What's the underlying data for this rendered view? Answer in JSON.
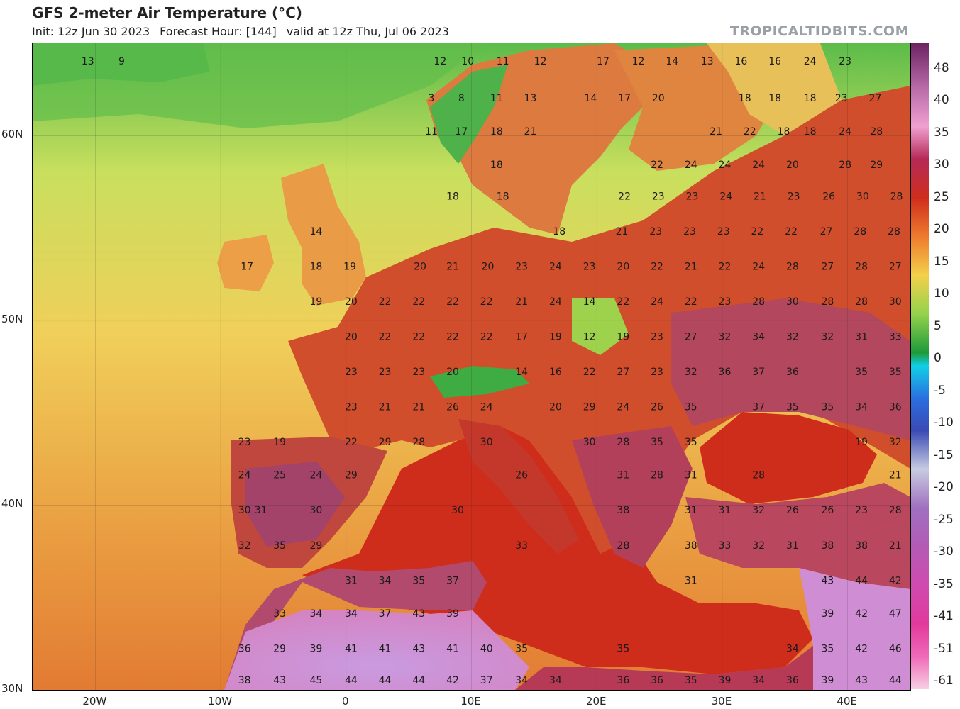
{
  "header": {
    "title": "GFS 2-meter Air Temperature (°C)",
    "init": "Init: 12z Jun 30 2023",
    "forecast_hour": "Forecast Hour: [144]",
    "valid": "valid at 12z Thu, Jul 06 2023",
    "source": "TROPICALTIDBITS.COM"
  },
  "axes": {
    "lat_labels": [
      "60N",
      "50N",
      "40N",
      "30N"
    ],
    "lon_labels": [
      "20W",
      "10W",
      "0",
      "10E",
      "20E",
      "30E",
      "40E"
    ]
  },
  "colorbar": {
    "labels": [
      "48",
      "40",
      "35",
      "30",
      "25",
      "20",
      "15",
      "10",
      "5",
      "0",
      "-5",
      "-10",
      "-15",
      "-20",
      "-25",
      "-30",
      "-35",
      "-41",
      "-51",
      "-61"
    ],
    "colors": [
      "#7a1f6a",
      "#c95bb0",
      "#e48ac9",
      "#b8404f",
      "#cc2a1f",
      "#e8642a",
      "#f3c646",
      "#c7e25a",
      "#2fa83a",
      "#11cfe6",
      "#2a6fe0",
      "#3a4ab5",
      "#7f8fb6",
      "#a070c0",
      "#b35ab5",
      "#d04ab0",
      "#e23a9c",
      "#f06ab8",
      "#f7a5cc",
      "#f7d0e3"
    ],
    "map_colors": {
      "sea_cool": "#eec060",
      "sea_warm": "#e58a35",
      "mediterranean": "#cf2d1c",
      "land_hot": "#c7342a",
      "land_very_hot": "#a33d63",
      "desert": "#c79bd8",
      "north_cold": "#46b34a",
      "scandinavia": "#e07c3e"
    }
  },
  "temperature_labels": [
    {
      "v": "13",
      "lon": -20.6,
      "lat": 64.0
    },
    {
      "v": "9",
      "lon": -17.9,
      "lat": 64.0
    },
    {
      "v": "12",
      "lon": 7.5,
      "lat": 64.0
    },
    {
      "v": "10",
      "lon": 9.7,
      "lat": 64.0
    },
    {
      "v": "11",
      "lon": 12.5,
      "lat": 64.0
    },
    {
      "v": "12",
      "lon": 15.5,
      "lat": 64.0
    },
    {
      "v": "17",
      "lon": 20.5,
      "lat": 64.0
    },
    {
      "v": "12",
      "lon": 23.3,
      "lat": 64.0
    },
    {
      "v": "14",
      "lon": 26.0,
      "lat": 64.0
    },
    {
      "v": "13",
      "lon": 28.8,
      "lat": 64.0
    },
    {
      "v": "16",
      "lon": 31.5,
      "lat": 64.0
    },
    {
      "v": "16",
      "lon": 34.2,
      "lat": 64.0
    },
    {
      "v": "24",
      "lon": 37.0,
      "lat": 64.0
    },
    {
      "v": "23",
      "lon": 39.8,
      "lat": 64.0
    },
    {
      "v": "3",
      "lon": 6.8,
      "lat": 62.0
    },
    {
      "v": "8",
      "lon": 9.2,
      "lat": 62.0
    },
    {
      "v": "11",
      "lon": 12.0,
      "lat": 62.0
    },
    {
      "v": "13",
      "lon": 14.7,
      "lat": 62.0
    },
    {
      "v": "14",
      "lon": 19.5,
      "lat": 62.0
    },
    {
      "v": "17",
      "lon": 22.2,
      "lat": 62.0
    },
    {
      "v": "20",
      "lon": 24.9,
      "lat": 62.0
    },
    {
      "v": "18",
      "lon": 31.8,
      "lat": 62.0
    },
    {
      "v": "18",
      "lon": 34.2,
      "lat": 62.0
    },
    {
      "v": "18",
      "lon": 37.0,
      "lat": 62.0
    },
    {
      "v": "23",
      "lon": 39.5,
      "lat": 62.0
    },
    {
      "v": "27",
      "lon": 42.2,
      "lat": 62.0
    },
    {
      "v": "11",
      "lon": 6.8,
      "lat": 60.2
    },
    {
      "v": "17",
      "lon": 9.2,
      "lat": 60.2
    },
    {
      "v": "18",
      "lon": 12.0,
      "lat": 60.2
    },
    {
      "v": "21",
      "lon": 14.7,
      "lat": 60.2
    },
    {
      "v": "21",
      "lon": 29.5,
      "lat": 60.2
    },
    {
      "v": "22",
      "lon": 32.2,
      "lat": 60.2
    },
    {
      "v": "18",
      "lon": 34.9,
      "lat": 60.2
    },
    {
      "v": "18",
      "lon": 37.0,
      "lat": 60.2
    },
    {
      "v": "24",
      "lon": 39.8,
      "lat": 60.2
    },
    {
      "v": "28",
      "lon": 42.3,
      "lat": 60.2
    },
    {
      "v": "18",
      "lon": 12.0,
      "lat": 58.4
    },
    {
      "v": "22",
      "lon": 24.8,
      "lat": 58.4
    },
    {
      "v": "24",
      "lon": 27.5,
      "lat": 58.4
    },
    {
      "v": "24",
      "lon": 30.2,
      "lat": 58.4
    },
    {
      "v": "24",
      "lon": 32.9,
      "lat": 58.4
    },
    {
      "v": "20",
      "lon": 35.6,
      "lat": 58.4
    },
    {
      "v": "28",
      "lon": 39.8,
      "lat": 58.4
    },
    {
      "v": "29",
      "lon": 42.3,
      "lat": 58.4
    },
    {
      "v": "18",
      "lon": 8.5,
      "lat": 56.7
    },
    {
      "v": "18",
      "lon": 12.5,
      "lat": 56.7
    },
    {
      "v": "22",
      "lon": 22.2,
      "lat": 56.7
    },
    {
      "v": "23",
      "lon": 24.9,
      "lat": 56.7
    },
    {
      "v": "23",
      "lon": 27.6,
      "lat": 56.7
    },
    {
      "v": "24",
      "lon": 30.3,
      "lat": 56.7
    },
    {
      "v": "21",
      "lon": 33.0,
      "lat": 56.7
    },
    {
      "v": "23",
      "lon": 35.7,
      "lat": 56.7
    },
    {
      "v": "26",
      "lon": 38.5,
      "lat": 56.7
    },
    {
      "v": "30",
      "lon": 41.2,
      "lat": 56.7
    },
    {
      "v": "28",
      "lon": 43.9,
      "lat": 56.7
    },
    {
      "v": "14",
      "lon": -2.4,
      "lat": 54.8
    },
    {
      "v": "18",
      "lon": 17.0,
      "lat": 54.8
    },
    {
      "v": "21",
      "lon": 22.0,
      "lat": 54.8
    },
    {
      "v": "23",
      "lon": 24.7,
      "lat": 54.8
    },
    {
      "v": "23",
      "lon": 27.4,
      "lat": 54.8
    },
    {
      "v": "23",
      "lon": 30.1,
      "lat": 54.8
    },
    {
      "v": "22",
      "lon": 32.8,
      "lat": 54.8
    },
    {
      "v": "22",
      "lon": 35.5,
      "lat": 54.8
    },
    {
      "v": "27",
      "lon": 38.3,
      "lat": 54.8
    },
    {
      "v": "28",
      "lon": 41.0,
      "lat": 54.8
    },
    {
      "v": "28",
      "lon": 43.7,
      "lat": 54.8
    },
    {
      "v": "17",
      "lon": -7.9,
      "lat": 52.9
    },
    {
      "v": "18",
      "lon": -2.4,
      "lat": 52.9
    },
    {
      "v": "19",
      "lon": 0.3,
      "lat": 52.9
    },
    {
      "v": "20",
      "lon": 5.9,
      "lat": 52.9
    },
    {
      "v": "21",
      "lon": 8.5,
      "lat": 52.9
    },
    {
      "v": "20",
      "lon": 11.3,
      "lat": 52.9
    },
    {
      "v": "23",
      "lon": 14.0,
      "lat": 52.9
    },
    {
      "v": "24",
      "lon": 16.7,
      "lat": 52.9
    },
    {
      "v": "23",
      "lon": 19.4,
      "lat": 52.9
    },
    {
      "v": "20",
      "lon": 22.1,
      "lat": 52.9
    },
    {
      "v": "22",
      "lon": 24.8,
      "lat": 52.9
    },
    {
      "v": "21",
      "lon": 27.5,
      "lat": 52.9
    },
    {
      "v": "22",
      "lon": 30.2,
      "lat": 52.9
    },
    {
      "v": "24",
      "lon": 32.9,
      "lat": 52.9
    },
    {
      "v": "28",
      "lon": 35.6,
      "lat": 52.9
    },
    {
      "v": "27",
      "lon": 38.4,
      "lat": 52.9
    },
    {
      "v": "28",
      "lon": 41.1,
      "lat": 52.9
    },
    {
      "v": "27",
      "lon": 43.8,
      "lat": 52.9
    },
    {
      "v": "19",
      "lon": -2.4,
      "lat": 51.0
    },
    {
      "v": "20",
      "lon": 0.4,
      "lat": 51.0
    },
    {
      "v": "22",
      "lon": 3.1,
      "lat": 51.0
    },
    {
      "v": "22",
      "lon": 5.8,
      "lat": 51.0
    },
    {
      "v": "22",
      "lon": 8.5,
      "lat": 51.0
    },
    {
      "v": "22",
      "lon": 11.2,
      "lat": 51.0
    },
    {
      "v": "21",
      "lon": 14.0,
      "lat": 51.0
    },
    {
      "v": "24",
      "lon": 16.7,
      "lat": 51.0
    },
    {
      "v": "14",
      "lon": 19.4,
      "lat": 51.0
    },
    {
      "v": "22",
      "lon": 22.1,
      "lat": 51.0
    },
    {
      "v": "24",
      "lon": 24.8,
      "lat": 51.0
    },
    {
      "v": "22",
      "lon": 27.5,
      "lat": 51.0
    },
    {
      "v": "23",
      "lon": 30.2,
      "lat": 51.0
    },
    {
      "v": "28",
      "lon": 32.9,
      "lat": 51.0
    },
    {
      "v": "30",
      "lon": 35.6,
      "lat": 51.0
    },
    {
      "v": "28",
      "lon": 38.4,
      "lat": 51.0
    },
    {
      "v": "28",
      "lon": 41.1,
      "lat": 51.0
    },
    {
      "v": "30",
      "lon": 43.8,
      "lat": 51.0
    },
    {
      "v": "20",
      "lon": 0.4,
      "lat": 49.1
    },
    {
      "v": "22",
      "lon": 3.1,
      "lat": 49.1
    },
    {
      "v": "22",
      "lon": 5.8,
      "lat": 49.1
    },
    {
      "v": "22",
      "lon": 8.5,
      "lat": 49.1
    },
    {
      "v": "22",
      "lon": 11.2,
      "lat": 49.1
    },
    {
      "v": "17",
      "lon": 14.0,
      "lat": 49.1
    },
    {
      "v": "19",
      "lon": 16.7,
      "lat": 49.1
    },
    {
      "v": "12",
      "lon": 19.4,
      "lat": 49.1
    },
    {
      "v": "19",
      "lon": 22.1,
      "lat": 49.1
    },
    {
      "v": "23",
      "lon": 24.8,
      "lat": 49.1
    },
    {
      "v": "27",
      "lon": 27.5,
      "lat": 49.1
    },
    {
      "v": "32",
      "lon": 30.2,
      "lat": 49.1
    },
    {
      "v": "34",
      "lon": 32.9,
      "lat": 49.1
    },
    {
      "v": "32",
      "lon": 35.6,
      "lat": 49.1
    },
    {
      "v": "32",
      "lon": 38.4,
      "lat": 49.1
    },
    {
      "v": "31",
      "lon": 41.1,
      "lat": 49.1
    },
    {
      "v": "33",
      "lon": 43.8,
      "lat": 49.1
    },
    {
      "v": "23",
      "lon": 0.4,
      "lat": 47.2
    },
    {
      "v": "23",
      "lon": 3.1,
      "lat": 47.2
    },
    {
      "v": "23",
      "lon": 5.8,
      "lat": 47.2
    },
    {
      "v": "20",
      "lon": 8.5,
      "lat": 47.2
    },
    {
      "v": "14",
      "lon": 14.0,
      "lat": 47.2
    },
    {
      "v": "16",
      "lon": 16.7,
      "lat": 47.2
    },
    {
      "v": "22",
      "lon": 19.4,
      "lat": 47.2
    },
    {
      "v": "27",
      "lon": 22.1,
      "lat": 47.2
    },
    {
      "v": "23",
      "lon": 24.8,
      "lat": 47.2
    },
    {
      "v": "32",
      "lon": 27.5,
      "lat": 47.2
    },
    {
      "v": "36",
      "lon": 30.2,
      "lat": 47.2
    },
    {
      "v": "37",
      "lon": 32.9,
      "lat": 47.2
    },
    {
      "v": "36",
      "lon": 35.6,
      "lat": 47.2
    },
    {
      "v": "35",
      "lon": 41.1,
      "lat": 47.2
    },
    {
      "v": "35",
      "lon": 43.8,
      "lat": 47.2
    },
    {
      "v": "23",
      "lon": 0.4,
      "lat": 45.3
    },
    {
      "v": "21",
      "lon": 3.1,
      "lat": 45.3
    },
    {
      "v": "21",
      "lon": 5.8,
      "lat": 45.3
    },
    {
      "v": "26",
      "lon": 8.5,
      "lat": 45.3
    },
    {
      "v": "24",
      "lon": 11.2,
      "lat": 45.3
    },
    {
      "v": "20",
      "lon": 16.7,
      "lat": 45.3
    },
    {
      "v": "29",
      "lon": 19.4,
      "lat": 45.3
    },
    {
      "v": "24",
      "lon": 22.1,
      "lat": 45.3
    },
    {
      "v": "26",
      "lon": 24.8,
      "lat": 45.3
    },
    {
      "v": "35",
      "lon": 27.5,
      "lat": 45.3
    },
    {
      "v": "37",
      "lon": 32.9,
      "lat": 45.3
    },
    {
      "v": "35",
      "lon": 35.6,
      "lat": 45.3
    },
    {
      "v": "35",
      "lon": 38.4,
      "lat": 45.3
    },
    {
      "v": "34",
      "lon": 41.1,
      "lat": 45.3
    },
    {
      "v": "36",
      "lon": 43.8,
      "lat": 45.3
    },
    {
      "v": "23",
      "lon": -8.1,
      "lat": 43.4
    },
    {
      "v": "19",
      "lon": -5.3,
      "lat": 43.4
    },
    {
      "v": "22",
      "lon": 0.4,
      "lat": 43.4
    },
    {
      "v": "29",
      "lon": 3.1,
      "lat": 43.4
    },
    {
      "v": "28",
      "lon": 5.8,
      "lat": 43.4
    },
    {
      "v": "30",
      "lon": 11.2,
      "lat": 43.4
    },
    {
      "v": "30",
      "lon": 19.4,
      "lat": 43.4
    },
    {
      "v": "28",
      "lon": 22.1,
      "lat": 43.4
    },
    {
      "v": "35",
      "lon": 24.8,
      "lat": 43.4
    },
    {
      "v": "35",
      "lon": 27.5,
      "lat": 43.4
    },
    {
      "v": "19",
      "lon": 41.1,
      "lat": 43.4
    },
    {
      "v": "32",
      "lon": 43.8,
      "lat": 43.4
    },
    {
      "v": "24",
      "lon": -8.1,
      "lat": 41.6
    },
    {
      "v": "25",
      "lon": -5.3,
      "lat": 41.6
    },
    {
      "v": "24",
      "lon": -2.4,
      "lat": 41.6
    },
    {
      "v": "29",
      "lon": 0.4,
      "lat": 41.6
    },
    {
      "v": "26",
      "lon": 14.0,
      "lat": 41.6
    },
    {
      "v": "31",
      "lon": 22.1,
      "lat": 41.6
    },
    {
      "v": "28",
      "lon": 24.8,
      "lat": 41.6
    },
    {
      "v": "31",
      "lon": 27.5,
      "lat": 41.6
    },
    {
      "v": "28",
      "lon": 32.9,
      "lat": 41.6
    },
    {
      "v": "21",
      "lon": 43.8,
      "lat": 41.6
    },
    {
      "v": "30",
      "lon": -8.1,
      "lat": 39.7
    },
    {
      "v": "31",
      "lon": -6.8,
      "lat": 39.7
    },
    {
      "v": "30",
      "lon": -2.4,
      "lat": 39.7
    },
    {
      "v": "30",
      "lon": 8.9,
      "lat": 39.7
    },
    {
      "v": "38",
      "lon": 22.1,
      "lat": 39.7
    },
    {
      "v": "31",
      "lon": 27.5,
      "lat": 39.7
    },
    {
      "v": "31",
      "lon": 30.2,
      "lat": 39.7
    },
    {
      "v": "32",
      "lon": 32.9,
      "lat": 39.7
    },
    {
      "v": "26",
      "lon": 35.6,
      "lat": 39.7
    },
    {
      "v": "26",
      "lon": 38.4,
      "lat": 39.7
    },
    {
      "v": "23",
      "lon": 41.1,
      "lat": 39.7
    },
    {
      "v": "28",
      "lon": 43.8,
      "lat": 39.7
    },
    {
      "v": "32",
      "lon": -8.1,
      "lat": 37.8
    },
    {
      "v": "35",
      "lon": -5.3,
      "lat": 37.8
    },
    {
      "v": "29",
      "lon": -2.4,
      "lat": 37.8
    },
    {
      "v": "33",
      "lon": 14.0,
      "lat": 37.8
    },
    {
      "v": "28",
      "lon": 22.1,
      "lat": 37.8
    },
    {
      "v": "38",
      "lon": 27.5,
      "lat": 37.8
    },
    {
      "v": "33",
      "lon": 30.2,
      "lat": 37.8
    },
    {
      "v": "32",
      "lon": 32.9,
      "lat": 37.8
    },
    {
      "v": "31",
      "lon": 35.6,
      "lat": 37.8
    },
    {
      "v": "38",
      "lon": 38.4,
      "lat": 37.8
    },
    {
      "v": "38",
      "lon": 41.1,
      "lat": 37.8
    },
    {
      "v": "21",
      "lon": 43.8,
      "lat": 37.8
    },
    {
      "v": "31",
      "lon": 0.4,
      "lat": 35.9
    },
    {
      "v": "34",
      "lon": 3.1,
      "lat": 35.9
    },
    {
      "v": "35",
      "lon": 5.8,
      "lat": 35.9
    },
    {
      "v": "37",
      "lon": 8.5,
      "lat": 35.9
    },
    {
      "v": "31",
      "lon": 27.5,
      "lat": 35.9
    },
    {
      "v": "43",
      "lon": 38.4,
      "lat": 35.9
    },
    {
      "v": "44",
      "lon": 41.1,
      "lat": 35.9
    },
    {
      "v": "42",
      "lon": 43.8,
      "lat": 35.9
    },
    {
      "v": "33",
      "lon": -5.3,
      "lat": 34.1
    },
    {
      "v": "34",
      "lon": -2.4,
      "lat": 34.1
    },
    {
      "v": "34",
      "lon": 0.4,
      "lat": 34.1
    },
    {
      "v": "37",
      "lon": 3.1,
      "lat": 34.1
    },
    {
      "v": "43",
      "lon": 5.8,
      "lat": 34.1
    },
    {
      "v": "39",
      "lon": 8.5,
      "lat": 34.1
    },
    {
      "v": "39",
      "lon": 38.4,
      "lat": 34.1
    },
    {
      "v": "42",
      "lon": 41.1,
      "lat": 34.1
    },
    {
      "v": "47",
      "lon": 43.8,
      "lat": 34.1
    },
    {
      "v": "36",
      "lon": -8.1,
      "lat": 32.2
    },
    {
      "v": "29",
      "lon": -5.3,
      "lat": 32.2
    },
    {
      "v": "39",
      "lon": -2.4,
      "lat": 32.2
    },
    {
      "v": "41",
      "lon": 0.4,
      "lat": 32.2
    },
    {
      "v": "41",
      "lon": 3.1,
      "lat": 32.2
    },
    {
      "v": "43",
      "lon": 5.8,
      "lat": 32.2
    },
    {
      "v": "41",
      "lon": 8.5,
      "lat": 32.2
    },
    {
      "v": "40",
      "lon": 11.2,
      "lat": 32.2
    },
    {
      "v": "35",
      "lon": 14.0,
      "lat": 32.2
    },
    {
      "v": "35",
      "lon": 22.1,
      "lat": 32.2
    },
    {
      "v": "34",
      "lon": 35.6,
      "lat": 32.2
    },
    {
      "v": "35",
      "lon": 38.4,
      "lat": 32.2
    },
    {
      "v": "42",
      "lon": 41.1,
      "lat": 32.2
    },
    {
      "v": "46",
      "lon": 43.8,
      "lat": 32.2
    },
    {
      "v": "38",
      "lon": -8.1,
      "lat": 30.5
    },
    {
      "v": "43",
      "lon": -5.3,
      "lat": 30.5
    },
    {
      "v": "45",
      "lon": -2.4,
      "lat": 30.5
    },
    {
      "v": "44",
      "lon": 0.4,
      "lat": 30.5
    },
    {
      "v": "44",
      "lon": 3.1,
      "lat": 30.5
    },
    {
      "v": "44",
      "lon": 5.8,
      "lat": 30.5
    },
    {
      "v": "42",
      "lon": 8.5,
      "lat": 30.5
    },
    {
      "v": "37",
      "lon": 11.2,
      "lat": 30.5
    },
    {
      "v": "34",
      "lon": 14.0,
      "lat": 30.5
    },
    {
      "v": "34",
      "lon": 16.7,
      "lat": 30.5
    },
    {
      "v": "36",
      "lon": 22.1,
      "lat": 30.5
    },
    {
      "v": "36",
      "lon": 24.8,
      "lat": 30.5
    },
    {
      "v": "35",
      "lon": 27.5,
      "lat": 30.5
    },
    {
      "v": "39",
      "lon": 30.2,
      "lat": 30.5
    },
    {
      "v": "34",
      "lon": 32.9,
      "lat": 30.5
    },
    {
      "v": "36",
      "lon": 35.6,
      "lat": 30.5
    },
    {
      "v": "39",
      "lon": 38.4,
      "lat": 30.5
    },
    {
      "v": "43",
      "lon": 41.1,
      "lat": 30.5
    },
    {
      "v": "44",
      "lon": 43.8,
      "lat": 30.5
    }
  ]
}
